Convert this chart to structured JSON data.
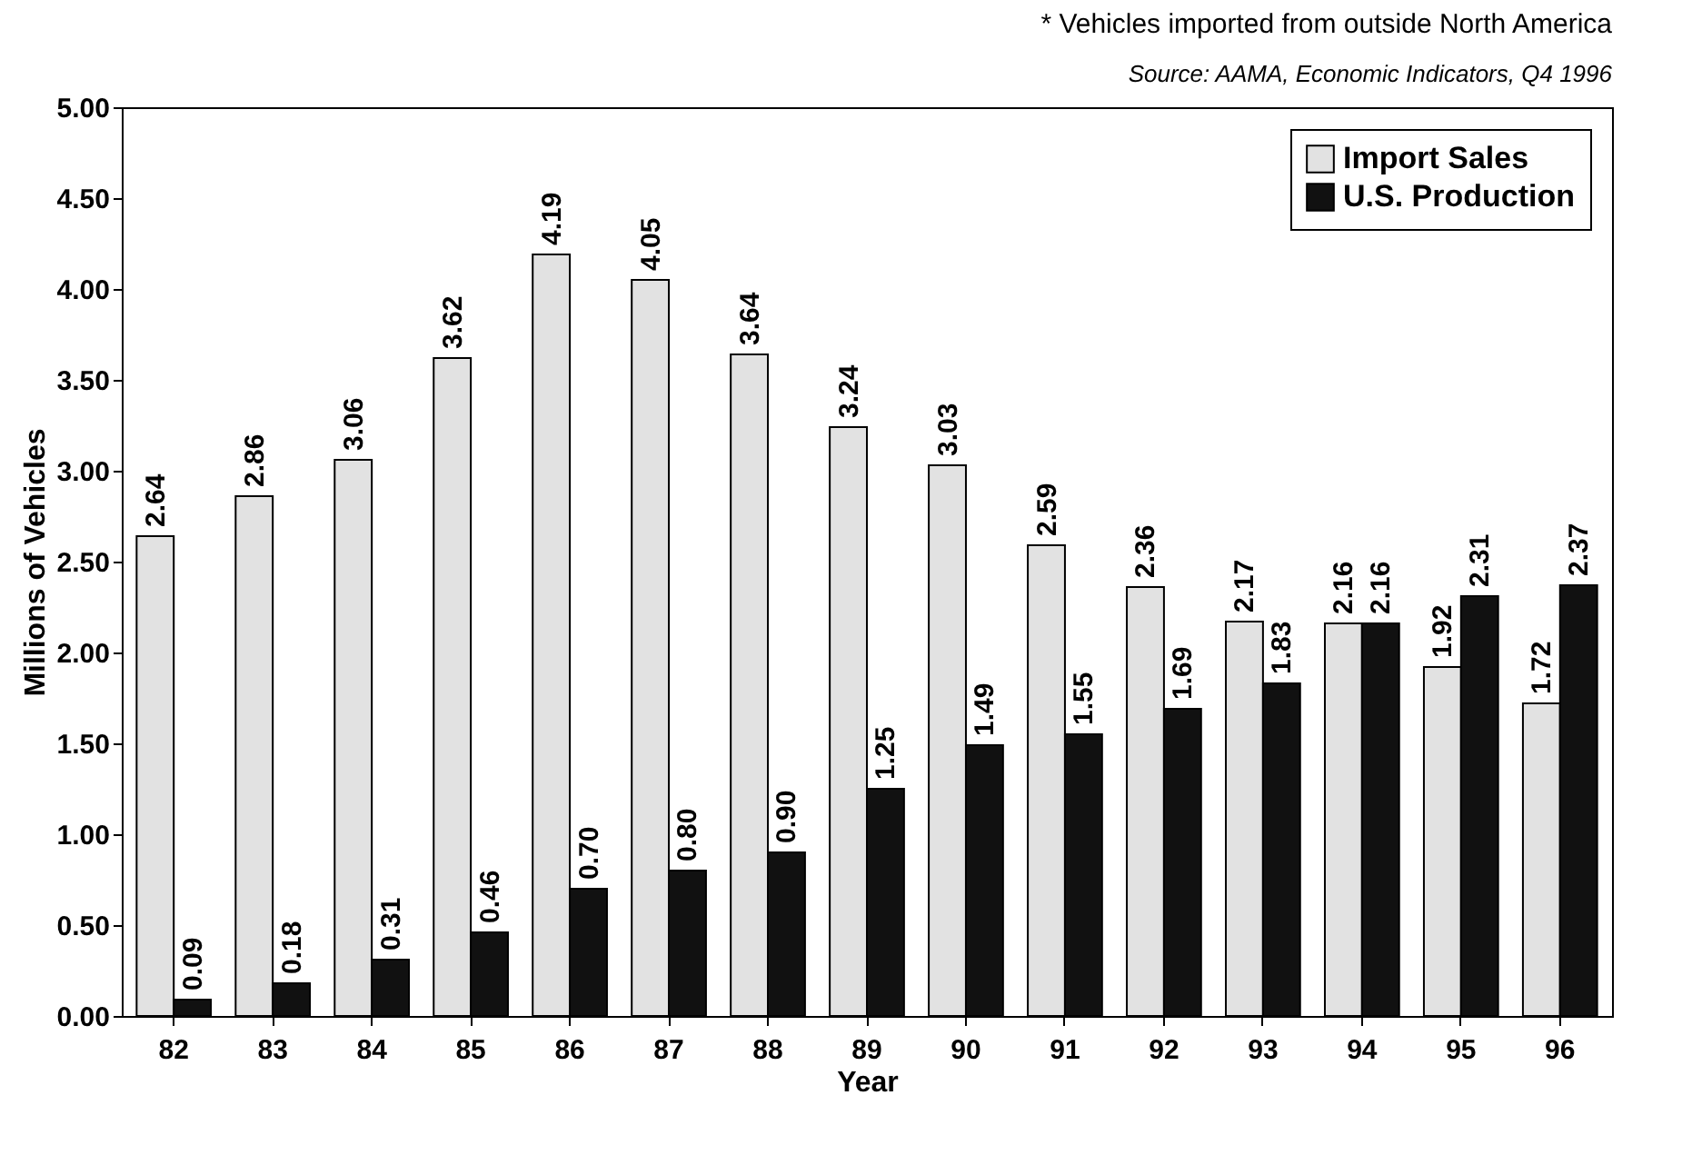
{
  "chart_data": {
    "type": "bar",
    "xlabel": "Year",
    "ylabel": "Millions of Vehicles",
    "annotations": [
      "* Vehicles imported from outside North America",
      "Source: AAMA, Economic Indicators, Q4 1996"
    ],
    "categories": [
      "82",
      "83",
      "84",
      "85",
      "86",
      "87",
      "88",
      "89",
      "90",
      "91",
      "92",
      "93",
      "94",
      "95",
      "96"
    ],
    "series": [
      {
        "name": "Import Sales",
        "color": "#e2e2e2",
        "values": [
          2.64,
          2.86,
          3.06,
          3.62,
          4.19,
          4.05,
          3.64,
          3.24,
          3.03,
          2.59,
          2.36,
          2.17,
          2.16,
          1.92,
          1.72
        ],
        "value_labels": [
          "2.64",
          "2.86",
          "3.06",
          "3.62",
          "4.19",
          "4.05",
          "3.64",
          "3.24",
          "3.03",
          "2.59",
          "2.36",
          "2.17",
          "2.16",
          "1.92",
          "1.72"
        ]
      },
      {
        "name": "U.S. Production",
        "color": "#111111",
        "values": [
          0.09,
          0.18,
          0.31,
          0.46,
          0.7,
          0.8,
          0.9,
          1.25,
          1.49,
          1.55,
          1.69,
          1.83,
          2.16,
          2.31,
          2.37
        ],
        "value_labels": [
          "0.09",
          "0.18",
          "0.31",
          "0.46",
          "0.70",
          "0.80",
          "0.90",
          "1.25",
          "1.49",
          "1.55",
          "1.69",
          "1.83",
          "2.16",
          "2.31",
          "2.37"
        ]
      }
    ],
    "ylim": [
      0,
      5
    ],
    "yticks": [
      {
        "value": 0,
        "label": "0.00"
      },
      {
        "value": 0.5,
        "label": "0.50"
      },
      {
        "value": 1,
        "label": "1.00"
      },
      {
        "value": 1.5,
        "label": "1.50"
      },
      {
        "value": 2,
        "label": "2.00"
      },
      {
        "value": 2.5,
        "label": "2.50"
      },
      {
        "value": 3,
        "label": "3.00"
      },
      {
        "value": 3.5,
        "label": "3.50"
      },
      {
        "value": 4,
        "label": "4.00"
      },
      {
        "value": 4.5,
        "label": "4.50"
      },
      {
        "value": 5,
        "label": "5.00"
      }
    ],
    "legend": "top right",
    "grid": false
  }
}
